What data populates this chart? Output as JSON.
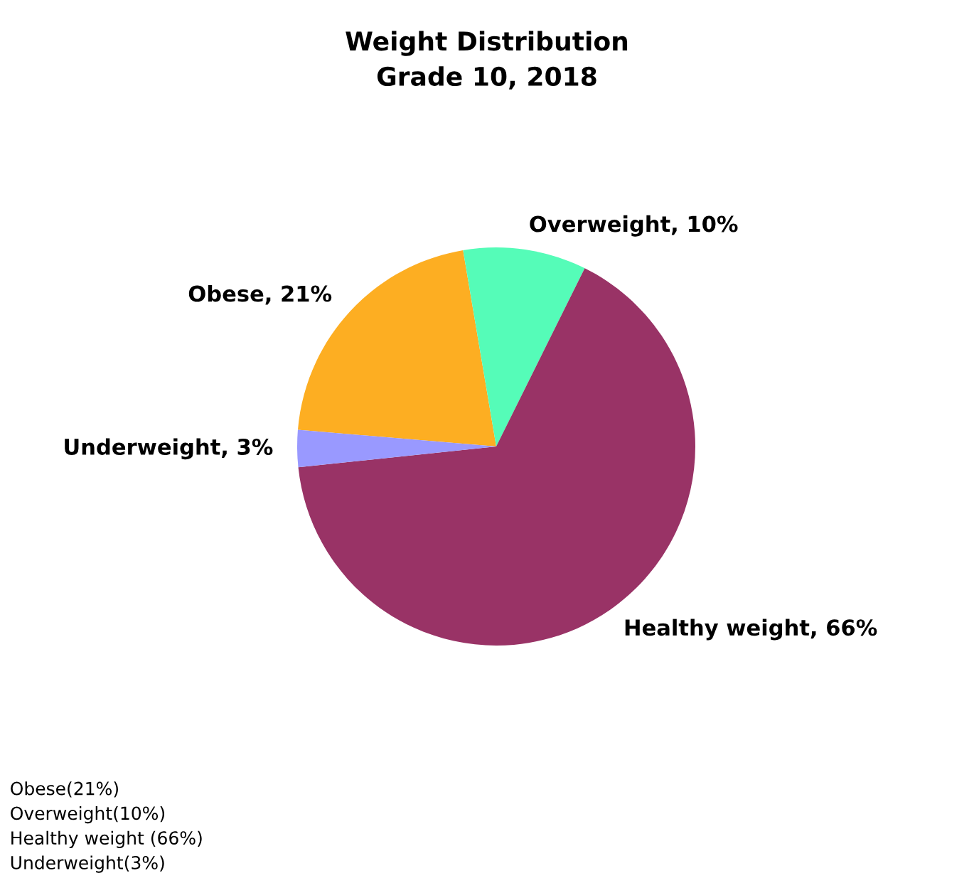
{
  "chart_data": {
    "type": "pie",
    "title": "Weight Distribution",
    "subtitle": "Grade 10, 2018",
    "categories": [
      "Obese",
      "Overweight",
      "Healthy weight",
      "Underweight"
    ],
    "values": [
      21,
      10,
      66,
      3
    ],
    "colors": [
      "#fdae22",
      "#55fcb8",
      "#993366",
      "#9999ff"
    ],
    "value_labels": [
      "21%",
      "10%",
      "66%",
      "3%"
    ],
    "annotations": [
      "Obese(21%)",
      "Overweight(10%)",
      "Healthy weight (66%)",
      "Underweight(3%)"
    ]
  }
}
